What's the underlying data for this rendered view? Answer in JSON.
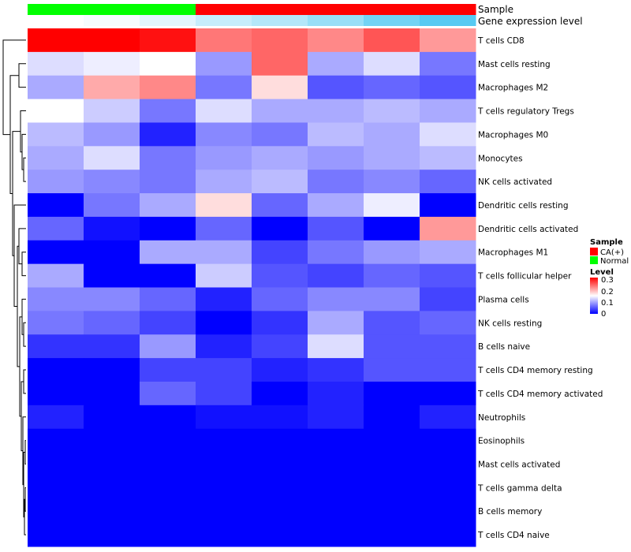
{
  "chart_data": {
    "type": "heatmap",
    "annotation_rows": [
      "Sample",
      "Gene expression level"
    ],
    "rows": [
      "T cells CD8",
      "Mast cells resting",
      "Macrophages M2",
      "T cells regulatory  Tregs",
      "Macrophages M0",
      "Monocytes",
      "NK cells activated",
      "Dendritic cells resting",
      "Dendritic cells activated",
      "Macrophages M1",
      "T cells follicular helper",
      "Plasma cells",
      "NK cells resting",
      "B cells naive",
      "T cells CD4 memory resting",
      "T cells CD4 memory activated",
      "Neutrophils",
      "Eosinophils",
      "Mast cells activated",
      "T cells gamma delta",
      "B cells memory",
      "T cells CD4 naive"
    ],
    "sample_groups": [
      "Normal",
      "Normal",
      "Normal",
      "CA(+)",
      "CA(+)",
      "CA(+)",
      "CA(+)",
      "CA(+)"
    ],
    "gene_expression_level": [
      0.0,
      0.05,
      0.15,
      0.3,
      0.4,
      0.55,
      0.75,
      0.9
    ],
    "values": [
      [
        0.3,
        0.3,
        0.29,
        0.23,
        0.24,
        0.22,
        0.25,
        0.21
      ],
      [
        0.13,
        0.14,
        0.15,
        0.09,
        0.24,
        0.1,
        0.13,
        0.07
      ],
      [
        0.1,
        0.2,
        0.22,
        0.07,
        0.17,
        0.05,
        0.06,
        0.05
      ],
      [
        0.15,
        0.12,
        0.07,
        0.13,
        0.1,
        0.1,
        0.11,
        0.1
      ],
      [
        0.11,
        0.09,
        0.02,
        0.08,
        0.07,
        0.11,
        0.1,
        0.13
      ],
      [
        0.1,
        0.13,
        0.07,
        0.09,
        0.1,
        0.09,
        0.1,
        0.11
      ],
      [
        0.09,
        0.08,
        0.07,
        0.1,
        0.11,
        0.07,
        0.08,
        0.06
      ],
      [
        0.0,
        0.07,
        0.1,
        0.17,
        0.06,
        0.1,
        0.14,
        0.0
      ],
      [
        0.06,
        0.01,
        0.0,
        0.06,
        0.0,
        0.05,
        0.0,
        0.21
      ],
      [
        0.0,
        0.0,
        0.1,
        0.1,
        0.04,
        0.07,
        0.09,
        0.1
      ],
      [
        0.1,
        0.0,
        0.0,
        0.12,
        0.05,
        0.04,
        0.06,
        0.05
      ],
      [
        0.08,
        0.08,
        0.06,
        0.02,
        0.06,
        0.08,
        0.08,
        0.04
      ],
      [
        0.07,
        0.06,
        0.04,
        0.0,
        0.03,
        0.1,
        0.05,
        0.06
      ],
      [
        0.03,
        0.03,
        0.09,
        0.02,
        0.04,
        0.13,
        0.05,
        0.05
      ],
      [
        0.0,
        0.0,
        0.04,
        0.04,
        0.02,
        0.03,
        0.05,
        0.05
      ],
      [
        0.0,
        0.0,
        0.06,
        0.04,
        0.0,
        0.02,
        0.0,
        0.0
      ],
      [
        0.02,
        0.0,
        0.0,
        0.01,
        0.01,
        0.02,
        0.0,
        0.02
      ],
      [
        0.0,
        0.0,
        0.0,
        0.0,
        0.0,
        0.0,
        0.0,
        0.0
      ],
      [
        0.0,
        0.0,
        0.0,
        0.0,
        0.0,
        0.0,
        0.0,
        0.0
      ],
      [
        0.0,
        0.0,
        0.0,
        0.0,
        0.0,
        0.0,
        0.0,
        0.0
      ],
      [
        0.0,
        0.0,
        0.0,
        0.0,
        0.0,
        0.0,
        0.0,
        0.0
      ],
      [
        0.0,
        0.0,
        0.0,
        0.0,
        0.0,
        0.0,
        0.0,
        0.0
      ]
    ],
    "value_range": [
      0,
      0.3
    ],
    "color_scale": [
      "#0000ff",
      "#ffffff",
      "#ff0000"
    ],
    "legend": {
      "sample_title": "Sample",
      "sample_entries": [
        {
          "label": "CA(+)",
          "color": "#ff0000"
        },
        {
          "label": "Normal",
          "color": "#00ff00"
        }
      ],
      "level_title": "Level",
      "level_ticks": [
        "0.3",
        "0.2",
        "0.1",
        "0"
      ],
      "placement": "right"
    },
    "expression_color_scale": [
      "#ffffff",
      "#44c4f0"
    ],
    "dendrogram": "rows"
  }
}
